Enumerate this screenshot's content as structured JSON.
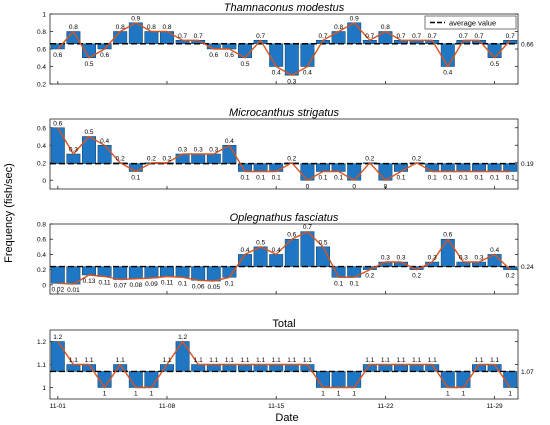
{
  "figure": {
    "ylabel": "Frequency (fish/sec)",
    "xlabel": "Date",
    "x_ticks": [
      "11-01",
      "11-08",
      "11-15",
      "11-22",
      "11-29"
    ],
    "colors": {
      "bar": "#1f77c4",
      "bar_edge": "#0d3d66",
      "line": "#d9531e",
      "avg": "#000000"
    }
  },
  "chart_data": [
    {
      "type": "bar",
      "title": "Thamnaconus modestus",
      "title_style": "italic",
      "days": 30,
      "values": [
        0.6,
        0.8,
        0.5,
        0.6,
        0.8,
        0.9,
        0.8,
        0.8,
        0.7,
        0.7,
        0.6,
        0.6,
        0.5,
        0.7,
        0.4,
        0.3,
        0.4,
        0.7,
        0.8,
        0.9,
        0.7,
        0.8,
        0.7,
        0.7,
        0.7,
        0.4,
        0.7,
        0.7,
        0.5,
        0.7
      ],
      "value_labels": [
        "0.6",
        "0.8",
        "0.5",
        "0.6",
        "0.8",
        "0.9",
        "0.8",
        "0.8",
        "0.7",
        "0.7",
        "0.6",
        "0.6",
        "0.5",
        "0.7",
        "0.4",
        "0.3",
        "0.4",
        "0.7",
        "0.8",
        "0.9",
        "0.7",
        "0.8",
        "0.7",
        "0.7",
        "0.7",
        "0.4",
        "0.7",
        "0.7",
        "0.5",
        "0.7"
      ],
      "average": 0.66,
      "average_label": "0.66",
      "ylim": [
        0.2,
        1.0
      ],
      "yticks": [
        0.2,
        0.4,
        0.6,
        0.8,
        1.0
      ],
      "ytick_labels": [
        "0.2",
        "0.4",
        "0.6",
        "0.8",
        "1"
      ],
      "legend": {
        "label": "average value",
        "placement": "top-right"
      }
    },
    {
      "type": "bar",
      "title": "Microcanthus strigatus",
      "title_style": "italic",
      "days": 30,
      "values": [
        0.6,
        0.3,
        0.5,
        0.4,
        0.2,
        0.1,
        0.2,
        0.2,
        0.3,
        0.3,
        0.3,
        0.4,
        0.1,
        0.1,
        0.1,
        0.2,
        0.0,
        0.1,
        0.1,
        0.0,
        0.2,
        0.0,
        0.1,
        0.2,
        0.1,
        0.1,
        0.1,
        0.1,
        0.1,
        0.1
      ],
      "value_labels": [
        "0.6",
        "0.3",
        "0.5",
        "0.4",
        "0.2",
        "0.1",
        "0.2",
        "0.2",
        "0.3",
        "0.3",
        "0.3",
        "0.4",
        "0.1",
        "0.1",
        "0.1",
        "0.2",
        "0",
        "0.1",
        "0.1",
        "0",
        "0.2",
        "0",
        "0.1",
        "0.2",
        "0.1",
        "0.1",
        "0.1",
        "0.1",
        "0.1",
        "0.1"
      ],
      "average": 0.19,
      "average_label": "0.19",
      "ylim": [
        -0.1,
        0.7
      ],
      "yticks": [
        0.0,
        0.2,
        0.4,
        0.6
      ],
      "ytick_labels": [
        "0",
        "0.2",
        "0.4",
        "0.6"
      ]
    },
    {
      "type": "bar",
      "title": "Oplegnathus fasciatus",
      "title_style": "italic",
      "days": 30,
      "values": [
        0.02,
        0.01,
        0.13,
        0.11,
        0.07,
        0.08,
        0.09,
        0.11,
        0.1,
        0.06,
        0.05,
        0.1,
        0.4,
        0.5,
        0.4,
        0.6,
        0.7,
        0.5,
        0.1,
        0.1,
        0.2,
        0.3,
        0.3,
        0.2,
        0.3,
        0.6,
        0.3,
        0.3,
        0.4,
        0.2
      ],
      "value_labels": [
        "0.02",
        "0.01",
        "0.13",
        "0.11",
        "0.07",
        "0.08",
        "0.09",
        "0.11",
        "0.1",
        "0.06",
        "0.05",
        "0.1",
        "0.4",
        "0.5",
        "0.4",
        "0.6",
        "0.7",
        "0.5",
        "0.1",
        "0.1",
        "0.2",
        "0.3",
        "0.3",
        "0.2",
        "0.3",
        "0.6",
        "0.3",
        "0.3",
        "0.4",
        "0.2"
      ],
      "average": 0.24,
      "average_label": "0.24",
      "ylim": [
        -0.12,
        0.8
      ],
      "yticks": [
        0.0,
        0.2,
        0.4,
        0.6,
        0.8
      ],
      "ytick_labels": [
        "0",
        "0.2",
        "0.4",
        "0.6",
        "0.8"
      ]
    },
    {
      "type": "bar",
      "title": "Total",
      "title_style": "normal",
      "days": 30,
      "values": [
        1.2,
        1.1,
        1.1,
        1.0,
        1.1,
        1.0,
        1.0,
        1.1,
        1.2,
        1.1,
        1.1,
        1.1,
        1.1,
        1.1,
        1.1,
        1.1,
        1.1,
        1.0,
        1.0,
        1.0,
        1.1,
        1.1,
        1.1,
        1.1,
        1.1,
        1.0,
        1.0,
        1.1,
        1.1,
        1.0
      ],
      "value_labels": [
        "1.2",
        "1.1",
        "1.1",
        "1",
        "1.1",
        "1",
        "1",
        "1.1",
        "1.2",
        "1.1",
        "1.1",
        "1.1",
        "1.1",
        "1.1",
        "1.1",
        "1.1",
        "1.1",
        "1",
        "1",
        "1",
        "1.1",
        "1.1",
        "1.1",
        "1.1",
        "1.1",
        "1",
        "1",
        "1.1",
        "1.1",
        "1"
      ],
      "average": 1.07,
      "average_label": "1.07",
      "ylim": [
        0.95,
        1.25
      ],
      "yticks": [
        1.0,
        1.1,
        1.2
      ],
      "ytick_labels": [
        "1",
        "1.1",
        "1.2"
      ]
    }
  ]
}
